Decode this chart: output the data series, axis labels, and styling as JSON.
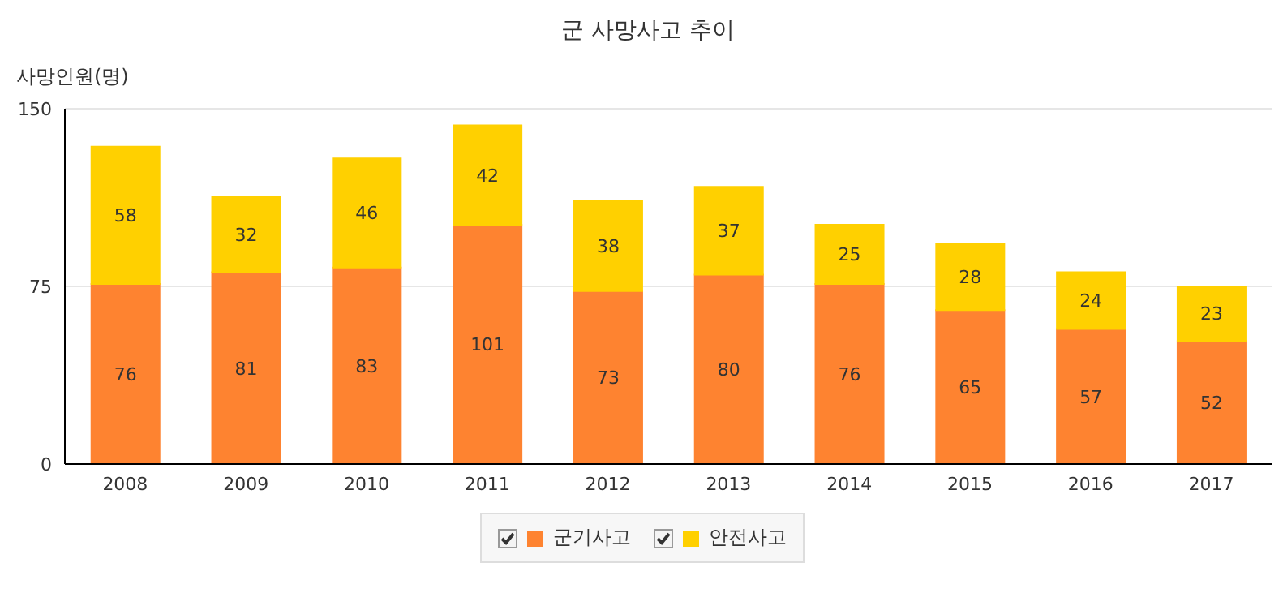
{
  "chart_data": {
    "type": "bar",
    "title": "군 사망사고 추이",
    "ylabel": "사망인원(명)",
    "categories": [
      "2008",
      "2009",
      "2010",
      "2011",
      "2012",
      "2013",
      "2014",
      "2015",
      "2016",
      "2017"
    ],
    "series": [
      {
        "name": "군기사고",
        "color": "#fe8330",
        "values": [
          76,
          81,
          83,
          101,
          73,
          80,
          76,
          65,
          57,
          52
        ]
      },
      {
        "name": "안전사고",
        "color": "#ffd000",
        "values": [
          58,
          32,
          46,
          42,
          38,
          37,
          25,
          28,
          24,
          23
        ]
      }
    ],
    "stacked": true,
    "ylim": [
      0,
      150
    ],
    "yticks": [
      0,
      75,
      150
    ],
    "grid": "y",
    "legend": "bottom",
    "data_labels": true
  }
}
